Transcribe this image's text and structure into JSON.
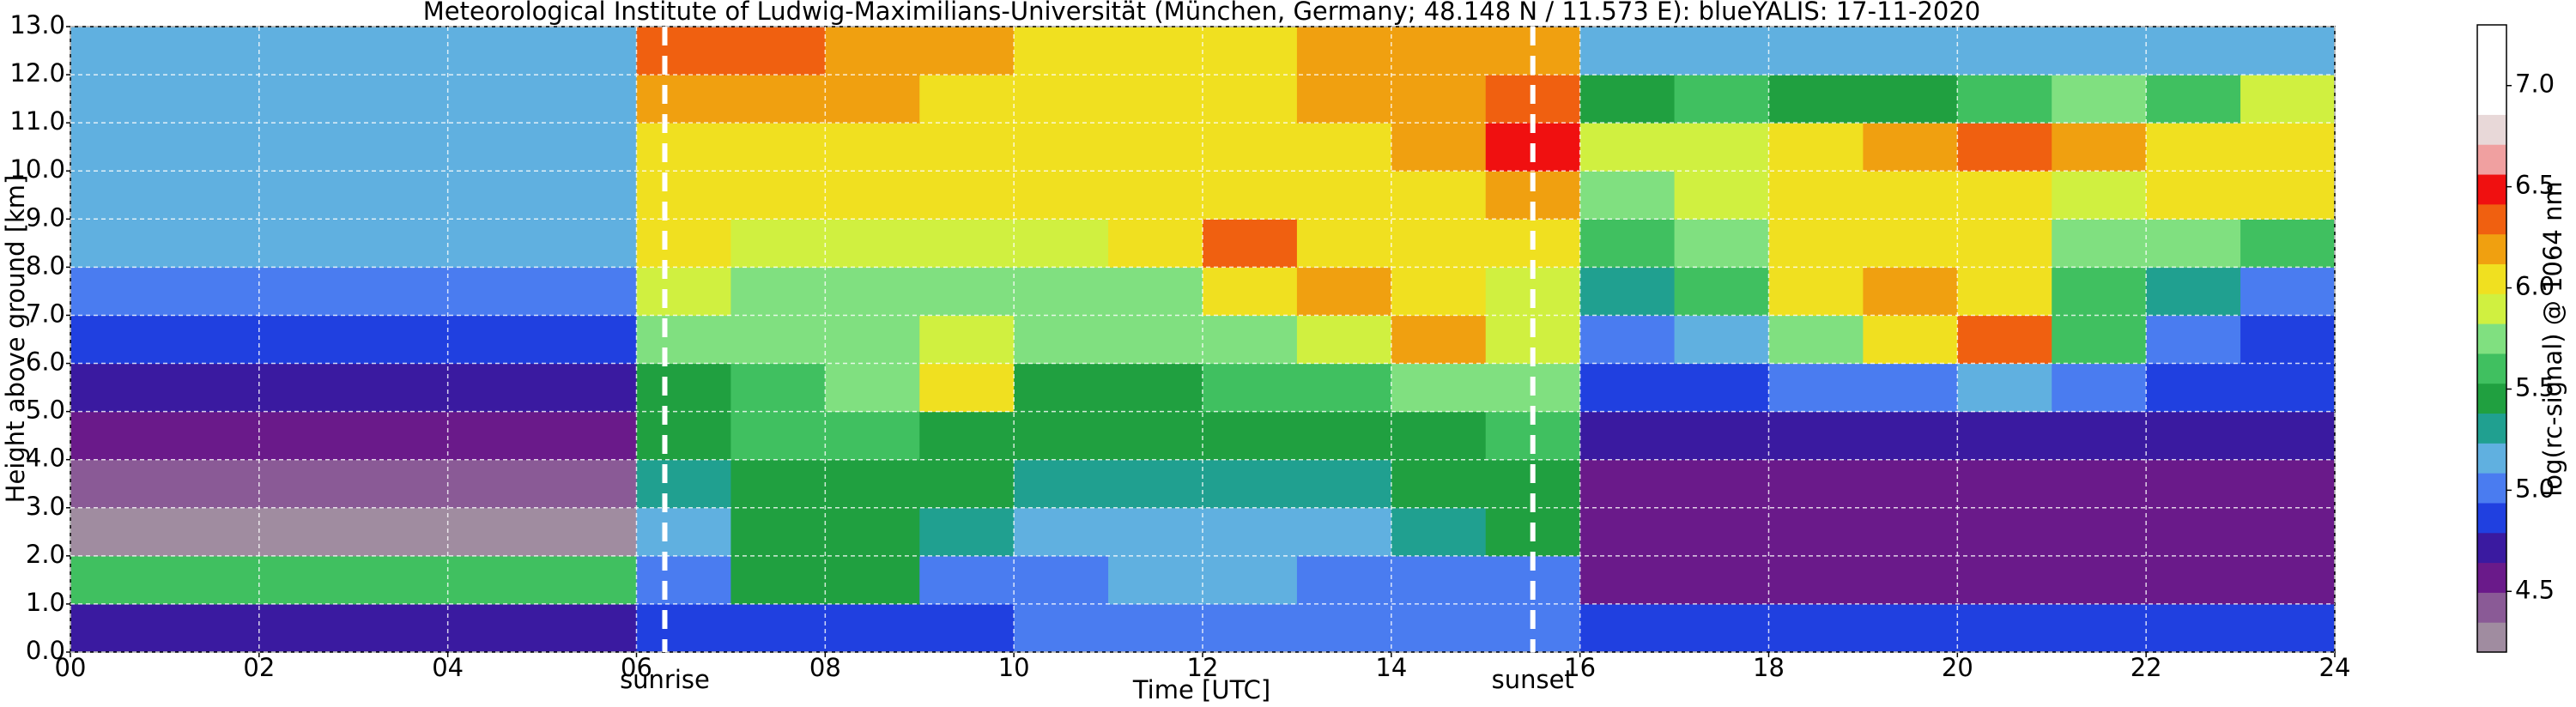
{
  "chart_data": {
    "type": "heatmap",
    "title": "Meteorological Institute of Ludwig-Maximilians-Universität (München, Germany; 48.148 N / 11.573 E):    blueYALIS: 17-11-2020",
    "xlabel": "Time [UTC]",
    "ylabel": "Height above ground [km]",
    "colorbar_label": "log(rc-signal) @ 1064 nm",
    "x_edges": [
      0,
      1,
      2,
      3,
      4,
      5,
      6,
      7,
      8,
      9,
      10,
      11,
      12,
      13,
      14,
      15,
      16,
      17,
      18,
      19,
      20,
      21,
      22,
      23,
      24
    ],
    "y_edges": [
      0,
      1,
      2,
      3,
      4,
      5,
      6,
      7,
      8,
      9,
      10,
      11,
      12,
      13
    ],
    "z": [
      [
        4.7,
        4.7,
        4.7,
        4.7,
        4.7,
        4.7,
        4.8,
        4.9,
        4.9,
        4.9,
        5.0,
        5.0,
        5.0,
        5.0,
        5.0,
        5.0,
        4.8,
        4.8,
        4.8,
        4.8,
        4.8,
        4.8,
        4.8,
        4.8
      ],
      [
        5.6,
        5.6,
        5.6,
        5.6,
        5.6,
        5.6,
        5.0,
        5.4,
        5.4,
        5.0,
        5.0,
        5.2,
        5.2,
        5.0,
        5.0,
        5.0,
        4.5,
        4.5,
        4.5,
        4.5,
        4.5,
        4.5,
        4.5,
        4.5
      ],
      [
        4.3,
        4.3,
        4.3,
        4.3,
        4.3,
        4.3,
        5.2,
        5.4,
        5.4,
        5.3,
        5.2,
        5.2,
        5.2,
        5.2,
        5.3,
        5.4,
        4.5,
        4.5,
        4.5,
        4.5,
        4.5,
        4.5,
        4.5,
        4.5
      ],
      [
        4.4,
        4.4,
        4.4,
        4.4,
        4.4,
        4.4,
        5.3,
        5.5,
        5.5,
        5.4,
        5.3,
        5.3,
        5.3,
        5.3,
        5.4,
        5.5,
        4.5,
        4.5,
        4.5,
        4.5,
        4.5,
        4.5,
        4.5,
        4.5
      ],
      [
        4.5,
        4.5,
        4.5,
        4.5,
        4.5,
        4.5,
        5.4,
        5.6,
        5.6,
        5.5,
        5.4,
        5.4,
        5.4,
        5.4,
        5.5,
        5.6,
        4.7,
        4.7,
        4.7,
        4.7,
        4.7,
        4.7,
        4.7,
        4.7
      ],
      [
        4.7,
        4.7,
        4.7,
        4.7,
        4.7,
        4.7,
        5.5,
        5.6,
        5.8,
        6.0,
        5.5,
        5.5,
        5.6,
        5.6,
        5.7,
        5.8,
        4.8,
        4.8,
        5.0,
        5.0,
        5.2,
        5.0,
        4.8,
        4.8
      ],
      [
        4.9,
        4.9,
        4.9,
        4.9,
        4.9,
        4.9,
        5.7,
        5.7,
        5.8,
        5.9,
        5.7,
        5.7,
        5.8,
        5.9,
        6.2,
        5.9,
        5.0,
        5.2,
        5.8,
        6.1,
        6.3,
        5.6,
        5.0,
        4.9
      ],
      [
        5.0,
        5.0,
        5.0,
        5.0,
        5.0,
        5.0,
        5.9,
        5.8,
        5.8,
        5.8,
        5.8,
        5.8,
        6.0,
        6.2,
        6.0,
        5.9,
        5.3,
        5.6,
        6.0,
        6.2,
        6.1,
        5.6,
        5.3,
        5.0
      ],
      [
        5.1,
        5.1,
        5.1,
        5.1,
        5.1,
        5.1,
        6.0,
        5.9,
        5.9,
        5.9,
        5.9,
        6.1,
        6.3,
        6.0,
        6.0,
        6.0,
        5.6,
        5.8,
        6.0,
        6.1,
        6.0,
        5.8,
        5.8,
        5.6
      ],
      [
        5.2,
        5.2,
        5.2,
        5.2,
        5.2,
        5.2,
        6.0,
        6.0,
        6.0,
        6.0,
        6.0,
        6.1,
        6.0,
        6.0,
        6.0,
        6.2,
        5.8,
        5.9,
        6.1,
        6.0,
        6.1,
        5.9,
        6.0,
        6.1
      ],
      [
        5.2,
        5.2,
        5.2,
        5.2,
        5.2,
        5.2,
        6.1,
        6.1,
        6.1,
        6.0,
        6.0,
        6.0,
        6.0,
        6.1,
        6.2,
        6.5,
        5.9,
        5.9,
        6.0,
        6.2,
        6.3,
        6.2,
        6.0,
        6.1
      ],
      [
        5.2,
        5.2,
        5.2,
        5.2,
        5.2,
        5.2,
        6.2,
        6.2,
        6.2,
        6.1,
        6.1,
        6.1,
        6.1,
        6.2,
        6.2,
        6.3,
        5.4,
        5.6,
        5.5,
        5.5,
        5.6,
        5.8,
        5.6,
        5.9
      ],
      [
        5.2,
        5.2,
        5.2,
        5.2,
        5.2,
        5.2,
        6.3,
        6.3,
        6.2,
        6.2,
        6.1,
        6.1,
        6.1,
        6.2,
        6.2,
        6.2,
        5.2,
        5.2,
        5.2,
        5.2,
        5.2,
        5.2,
        5.2,
        5.2
      ]
    ],
    "xlim": [
      0,
      24
    ],
    "ylim": [
      0,
      13
    ],
    "xticks": [
      {
        "value": 0,
        "label": "00"
      },
      {
        "value": 2,
        "label": "02"
      },
      {
        "value": 4,
        "label": "04"
      },
      {
        "value": 6,
        "label": "06"
      },
      {
        "value": 8,
        "label": "08"
      },
      10,
      12,
      14,
      16,
      18,
      20,
      22,
      24
    ],
    "yticks": [
      {
        "value": 0,
        "label": "0.0"
      },
      {
        "value": 1,
        "label": "1.0"
      },
      {
        "value": 2,
        "label": "2.0"
      },
      {
        "value": 3,
        "label": "3.0"
      },
      {
        "value": 4,
        "label": "4.0"
      },
      {
        "value": 5,
        "label": "5.0"
      },
      {
        "value": 6,
        "label": "6.0"
      },
      {
        "value": 7,
        "label": "7.0"
      },
      {
        "value": 8,
        "label": "8.0"
      },
      {
        "value": 9,
        "label": "9.0"
      },
      {
        "value": 10,
        "label": "10.0"
      },
      {
        "value": 11,
        "label": "11.0"
      },
      {
        "value": 12,
        "label": "12.0"
      },
      {
        "value": 13,
        "label": "13.0"
      }
    ],
    "clim": [
      4.2,
      7.3
    ],
    "cticks": [
      4.5,
      {
        "value": 5,
        "label": "5.0"
      },
      5.5,
      {
        "value": 6,
        "label": "6.0"
      },
      6.5,
      {
        "value": 7,
        "label": "7.0"
      }
    ],
    "colormap": [
      "#a08ca0",
      "#8a5a96",
      "#6a1a8a",
      "#3a1aa0",
      "#2040e0",
      "#4a7cf0",
      "#60b0e0",
      "#20a090",
      "#20a040",
      "#40c060",
      "#80e080",
      "#d0f040",
      "#f0e020",
      "#f0a010",
      "#f06010",
      "#f01010",
      "#f0a0a0",
      "#e8d8d8",
      "#ffffff",
      "#ffffff",
      "#ffffff"
    ],
    "grid": true,
    "annotations": [
      {
        "x": 6.3,
        "label": "sunrise"
      },
      {
        "x": 15.5,
        "label": "sunset"
      }
    ]
  }
}
